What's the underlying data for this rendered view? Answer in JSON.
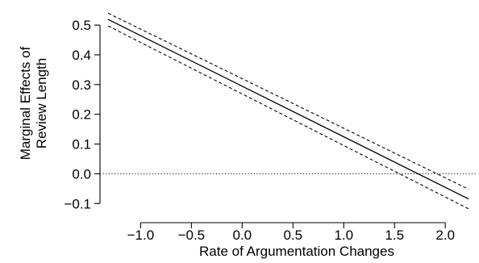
{
  "chart_data": {
    "type": "line",
    "title": "",
    "xlabel": "Rate of Argumentation Changes",
    "ylabel_lines": [
      "Marginal Effects of",
      "Review Length"
    ],
    "xlim": [
      -1.4,
      2.3
    ],
    "ylim": [
      -0.14,
      0.56
    ],
    "xticks": [
      -1.0,
      -0.5,
      0.0,
      0.5,
      1.0,
      1.5,
      2.0
    ],
    "xtick_labels": [
      "−1.0",
      "−0.5",
      "0.0",
      "0.5",
      "1.0",
      "1.5",
      "2.0"
    ],
    "yticks": [
      -0.1,
      0.0,
      0.1,
      0.2,
      0.3,
      0.4,
      0.5
    ],
    "ytick_labels": [
      "−0.1",
      "0.0",
      "0.1",
      "0.2",
      "0.3",
      "0.4",
      "0.5"
    ],
    "grid": false,
    "reference_line": {
      "y": 0.0,
      "style": "dotted"
    },
    "series": [
      {
        "style": "solid",
        "x": [
          -1.32,
          2.23
        ],
        "y": [
          0.519,
          -0.085
        ]
      },
      {
        "style": "dashed",
        "x": [
          -1.32,
          2.23
        ],
        "y": [
          0.54,
          -0.052
        ]
      },
      {
        "style": "dashed",
        "x": [
          -1.32,
          2.23
        ],
        "y": [
          0.497,
          -0.118
        ]
      }
    ]
  }
}
